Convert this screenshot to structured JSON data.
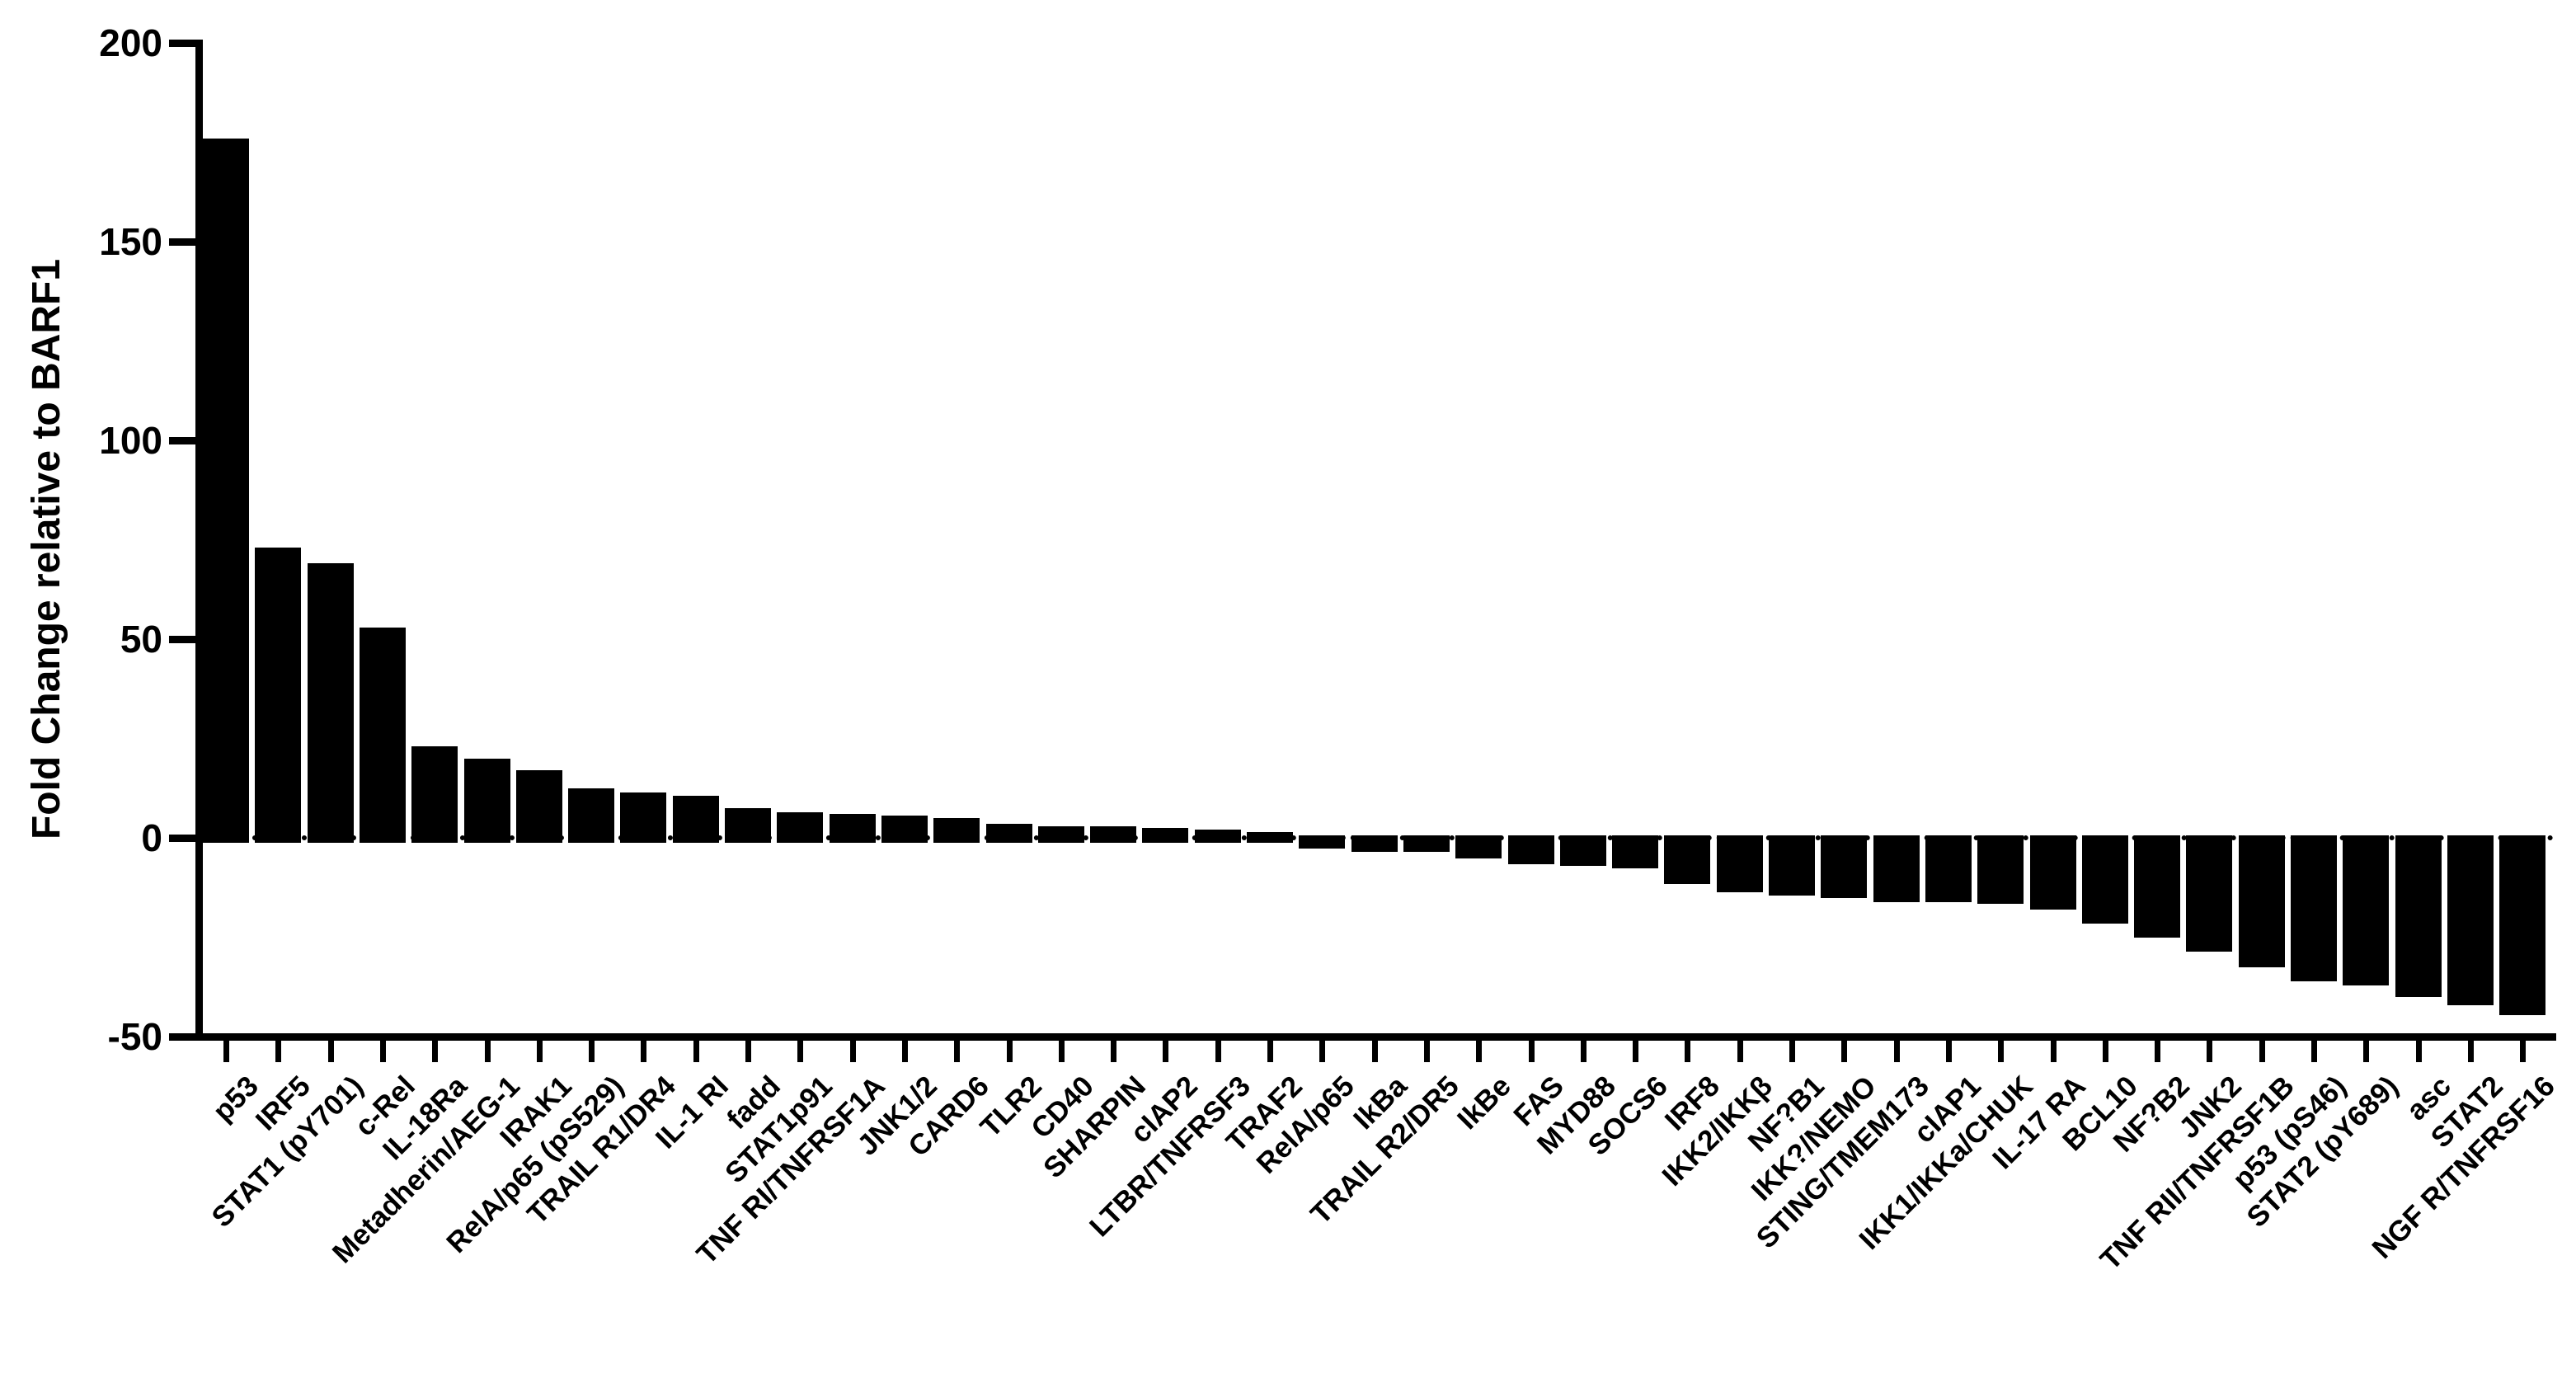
{
  "figure": {
    "background": "#ffffff",
    "bar_color": "#000000",
    "axis_color": "#000000",
    "text_color": "#000000"
  },
  "chart_data": {
    "type": "bar",
    "title": "",
    "xlabel": "",
    "ylabel": "Fold Change relative to BARF1",
    "ylim": [
      -50,
      200
    ],
    "yticks": [
      200,
      150,
      100,
      50,
      0,
      -50
    ],
    "grid": false,
    "legend_position": "none",
    "zero_line_style": "dotted",
    "bar_color": "#000000",
    "categories": [
      "p53",
      "IRF5",
      "STAT1 (pY701)",
      "c-Rel",
      "IL-18Ra",
      "Metadherin/AEG-1",
      "IRAK1",
      "RelA/p65 (pS529)",
      "TRAIL R1/DR4",
      "IL-1 RI",
      "fadd",
      "STAT1p91",
      "TNF RI/TNFRSF1A",
      "JNK1/2",
      "CARD6",
      "TLR2",
      "CD40",
      "SHARPIN",
      "cIAP2",
      "LTBR/TNFRSF3",
      "TRAF2",
      "RelA/p65",
      "IkBa",
      "TRAIL R2/DR5",
      "IkBe",
      "FAS",
      "MYD88",
      "SOCS6",
      "IRF8",
      "IKK2/IKKβ",
      "NF?B1",
      "IKK?/NEMO",
      "STING/TMEM173",
      "cIAP1",
      "IKK1/IKKa/CHUK",
      "IL-17 RA",
      "BCL10",
      "NF?B2",
      "JNK2",
      "TNF RII/TNFRSF1B",
      "p53 (pS46)",
      "STAT2 (pY689)",
      "asc",
      "STAT2",
      "NGF R/TNFRSF16"
    ],
    "values": [
      176,
      73,
      69,
      53,
      23,
      20,
      17,
      12.5,
      11.5,
      10.5,
      7.5,
      6.5,
      6,
      5.5,
      5,
      3.5,
      3,
      3,
      2.5,
      2,
      1.5,
      -2,
      -3,
      -3,
      -4.5,
      -6,
      -6.5,
      -7,
      -11,
      -13,
      -14,
      -14.5,
      -15.5,
      -15.5,
      -16,
      -17.5,
      -21,
      -24.5,
      -28,
      -32,
      -35.5,
      -36.5,
      -39.5,
      -41.5,
      -44
    ]
  }
}
